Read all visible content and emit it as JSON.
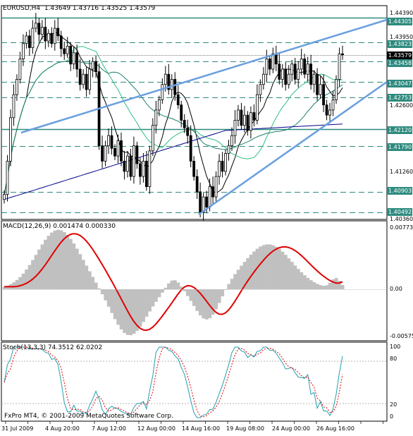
{
  "main": {
    "title": "EURUSD,H4  1.43649 1.43716 1.43525 1.43579",
    "price_axis": [
      "1.44390",
      "1.43950",
      "1.42600",
      "1.41260",
      "1.40360"
    ],
    "price_levels": [
      {
        "label": "1.44305",
        "price": 1.44305,
        "style": "solid"
      },
      {
        "label": "1.43823",
        "price": 1.43823,
        "style": "dash"
      },
      {
        "label": "1.43579",
        "price": 1.43579,
        "style": "current"
      },
      {
        "label": "1.43458",
        "price": 1.43458,
        "style": "dash"
      },
      {
        "label": "1.43047",
        "price": 1.43047,
        "style": "dash"
      },
      {
        "label": "1.42753",
        "price": 1.42753,
        "style": "dash"
      },
      {
        "label": "1.42120",
        "price": 1.4212,
        "style": "solid"
      },
      {
        "label": "1.41790",
        "price": 1.4179,
        "style": "dash"
      },
      {
        "label": "1.40903",
        "price": 1.40903,
        "style": "dash"
      },
      {
        "label": "1.40492",
        "price": 1.40492,
        "style": "dash"
      }
    ],
    "colors": {
      "levels": "#2e8b7f",
      "trendline": "#6a9fdf",
      "candle": "#000000",
      "ma_fast": "#000000",
      "ma_mid": "#2fbf7f",
      "ma_slow": "#00008b",
      "ma_teal": "#1f7f6f"
    }
  },
  "macd": {
    "title": "MACD(12,26,9) 0.001474 0.000330",
    "axis": [
      "0.00773",
      "0.00",
      "-0.00575"
    ],
    "colors": {
      "hist": "#c0c0c0",
      "signal": "#e00000"
    }
  },
  "stoch": {
    "title": "Stoch(13,3,3) 74.3512 62.0202",
    "axis": [
      "100",
      "80",
      "20",
      "0"
    ],
    "colors": {
      "main": "#20a0b0",
      "signal": "#e00000"
    }
  },
  "dates": [
    "31 Jul 2009",
    "4 Aug 20:00",
    "7 Aug 12:00",
    "12 Aug 00:00",
    "14 Aug 16:00",
    "19 Aug 08:00",
    "24 Aug 00:00",
    "26 Aug 16:00"
  ],
  "copyright": "FxPro MT4, © 2001-2009 MetaQuotes Software Corp."
}
